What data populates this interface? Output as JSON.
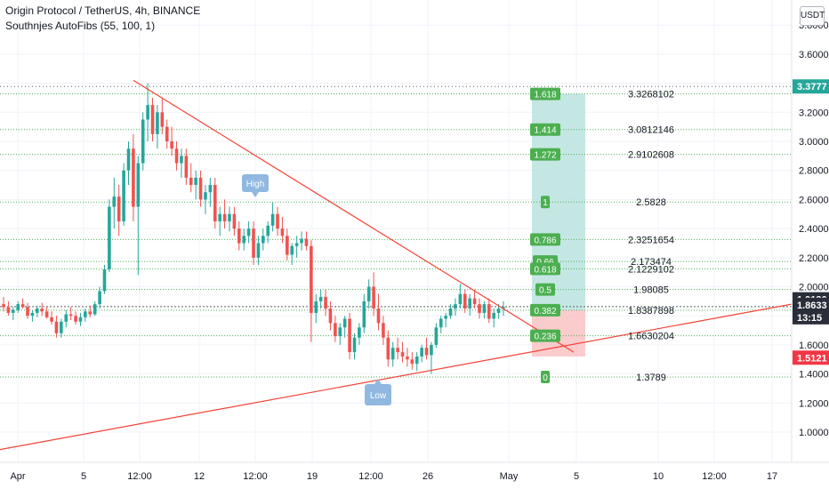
{
  "header": {
    "title": "Origin Protocol / TetherUS, 4h, BINANCE",
    "indicator": "Southnjes AutoFibs (55, 100, 1)"
  },
  "currency": "USDT",
  "colors": {
    "up": "#26a69a",
    "down": "#ef5350",
    "trend": "#f44336",
    "fib_line": "#4caf50",
    "fib_badge": "#4caf50",
    "zone_green": "#b2dfdb",
    "zone_red": "#f8bbbb",
    "marker": "#90b8e0",
    "price_blue": "#5d606b",
    "price_red": "#f23645",
    "price_dark": "#131722",
    "last_price_bg": "#2a2e39"
  },
  "price_axis": {
    "ticks": [
      "3.8000",
      "3.6000",
      "3.4000",
      "3.2000",
      "3.0000",
      "2.8000",
      "2.6000",
      "2.4000",
      "2.2000",
      "2.0000",
      "1.8000",
      "1.6000",
      "1.4000",
      "1.2000",
      "1.0000"
    ],
    "labels": [
      {
        "text": "3.3777",
        "style": "green"
      },
      {
        "text": "1.9136",
        "style": "dark"
      },
      {
        "text": "1.8633",
        "style": "blue"
      },
      {
        "text": "13:15",
        "style": "blue"
      },
      {
        "text": "1.5121",
        "style": "red"
      }
    ]
  },
  "time_axis": {
    "ticks": [
      "Apr",
      "5",
      "12:00",
      "12",
      "12:00",
      "19",
      "12:00",
      "26",
      "May",
      "5",
      "10",
      "12:00",
      "17"
    ]
  },
  "chart_data": {
    "type": "candlestick",
    "symbol": "OGN/USDT",
    "timeframe": "4h",
    "ylim": [
      0.9,
      3.85
    ],
    "fib_levels": [
      {
        "ratio": "1.618",
        "value": "3.3268102"
      },
      {
        "ratio": "1.414",
        "value": "3.0812146"
      },
      {
        "ratio": "1.272",
        "value": "2.9102608"
      },
      {
        "ratio": "1",
        "value": "2.5828"
      },
      {
        "ratio": "0.786",
        "value": "2.3251654"
      },
      {
        "ratio": "0.66",
        "value": "2.173474"
      },
      {
        "ratio": "0.618",
        "value": "2.1229102"
      },
      {
        "ratio": "0.5",
        "value": "1.98085"
      },
      {
        "ratio": "0.382",
        "value": "1.8387898"
      },
      {
        "ratio": "0.236",
        "value": "1.6630204"
      },
      {
        "ratio": "0",
        "value": "1.3789"
      }
    ],
    "markers": [
      {
        "label": "High"
      },
      {
        "label": "Low"
      }
    ],
    "candles": [
      [
        1.88,
        1.93,
        1.83,
        1.86
      ],
      [
        1.86,
        1.9,
        1.8,
        1.82
      ],
      [
        1.82,
        1.86,
        1.77,
        1.84
      ],
      [
        1.84,
        1.9,
        1.82,
        1.88
      ],
      [
        1.88,
        1.92,
        1.85,
        1.86
      ],
      [
        1.86,
        1.89,
        1.78,
        1.8
      ],
      [
        1.8,
        1.84,
        1.76,
        1.82
      ],
      [
        1.82,
        1.87,
        1.79,
        1.85
      ],
      [
        1.85,
        1.89,
        1.8,
        1.83
      ],
      [
        1.83,
        1.86,
        1.78,
        1.79
      ],
      [
        1.79,
        1.83,
        1.74,
        1.76
      ],
      [
        1.76,
        1.8,
        1.65,
        1.68
      ],
      [
        1.68,
        1.78,
        1.65,
        1.76
      ],
      [
        1.76,
        1.84,
        1.72,
        1.81
      ],
      [
        1.81,
        1.86,
        1.77,
        1.8
      ],
      [
        1.8,
        1.83,
        1.74,
        1.76
      ],
      [
        1.76,
        1.82,
        1.73,
        1.79
      ],
      [
        1.79,
        1.85,
        1.76,
        1.83
      ],
      [
        1.83,
        1.87,
        1.79,
        1.81
      ],
      [
        1.81,
        1.9,
        1.8,
        1.88
      ],
      [
        1.88,
        2.0,
        1.85,
        1.97
      ],
      [
        1.97,
        2.15,
        1.95,
        2.12
      ],
      [
        2.12,
        2.6,
        2.1,
        2.55
      ],
      [
        2.55,
        2.75,
        2.4,
        2.62
      ],
      [
        2.62,
        2.7,
        2.35,
        2.45
      ],
      [
        2.45,
        2.85,
        2.42,
        2.8
      ],
      [
        2.8,
        3.0,
        2.7,
        2.95
      ],
      [
        2.95,
        3.05,
        2.45,
        2.55
      ],
      [
        2.55,
        2.9,
        2.08,
        2.85
      ],
      [
        2.85,
        3.2,
        2.8,
        3.15
      ],
      [
        3.15,
        3.4,
        3.0,
        3.25
      ],
      [
        3.25,
        3.3,
        3.0,
        3.05
      ],
      [
        3.05,
        3.25,
        2.95,
        3.2
      ],
      [
        3.2,
        3.3,
        3.05,
        3.1
      ],
      [
        3.1,
        3.15,
        2.95,
        3.0
      ],
      [
        3.0,
        3.1,
        2.9,
        2.95
      ],
      [
        2.95,
        3.0,
        2.8,
        2.85
      ],
      [
        2.85,
        2.95,
        2.75,
        2.9
      ],
      [
        2.9,
        2.95,
        2.7,
        2.75
      ],
      [
        2.75,
        2.85,
        2.65,
        2.7
      ],
      [
        2.7,
        2.8,
        2.6,
        2.75
      ],
      [
        2.75,
        2.8,
        2.55,
        2.6
      ],
      [
        2.6,
        2.7,
        2.5,
        2.65
      ],
      [
        2.65,
        2.75,
        2.55,
        2.7
      ],
      [
        2.7,
        2.75,
        2.4,
        2.45
      ],
      [
        2.45,
        2.55,
        2.35,
        2.5
      ],
      [
        2.5,
        2.6,
        2.4,
        2.45
      ],
      [
        2.45,
        2.55,
        2.38,
        2.5
      ],
      [
        2.5,
        2.55,
        2.35,
        2.4
      ],
      [
        2.4,
        2.45,
        2.25,
        2.3
      ],
      [
        2.3,
        2.4,
        2.25,
        2.35
      ],
      [
        2.35,
        2.45,
        2.3,
        2.4
      ],
      [
        2.4,
        2.45,
        2.15,
        2.2
      ],
      [
        2.2,
        2.35,
        2.15,
        2.3
      ],
      [
        2.3,
        2.4,
        2.25,
        2.35
      ],
      [
        2.35,
        2.45,
        2.3,
        2.42
      ],
      [
        2.42,
        2.58,
        2.38,
        2.5
      ],
      [
        2.5,
        2.55,
        2.35,
        2.4
      ],
      [
        2.4,
        2.48,
        2.3,
        2.35
      ],
      [
        2.35,
        2.4,
        2.18,
        2.22
      ],
      [
        2.22,
        2.3,
        2.15,
        2.28
      ],
      [
        2.28,
        2.35,
        2.2,
        2.3
      ],
      [
        2.3,
        2.38,
        2.25,
        2.33
      ],
      [
        2.33,
        2.38,
        2.25,
        2.28
      ],
      [
        2.28,
        2.32,
        1.62,
        1.82
      ],
      [
        1.82,
        1.95,
        1.75,
        1.9
      ],
      [
        1.9,
        1.98,
        1.85,
        1.93
      ],
      [
        1.93,
        1.98,
        1.8,
        1.85
      ],
      [
        1.85,
        1.9,
        1.7,
        1.75
      ],
      [
        1.75,
        1.8,
        1.62,
        1.66
      ],
      [
        1.66,
        1.75,
        1.6,
        1.72
      ],
      [
        1.72,
        1.8,
        1.65,
        1.78
      ],
      [
        1.78,
        1.82,
        1.5,
        1.55
      ],
      [
        1.55,
        1.68,
        1.5,
        1.65
      ],
      [
        1.65,
        1.75,
        1.6,
        1.72
      ],
      [
        1.72,
        1.95,
        1.68,
        1.9
      ],
      [
        1.9,
        2.05,
        1.85,
        2.0
      ],
      [
        2.0,
        2.1,
        1.8,
        1.85
      ],
      [
        1.85,
        1.95,
        1.7,
        1.75
      ],
      [
        1.75,
        1.8,
        1.6,
        1.65
      ],
      [
        1.65,
        1.7,
        1.45,
        1.5
      ],
      [
        1.5,
        1.62,
        1.45,
        1.58
      ],
      [
        1.58,
        1.65,
        1.5,
        1.55
      ],
      [
        1.55,
        1.62,
        1.48,
        1.52
      ],
      [
        1.52,
        1.58,
        1.45,
        1.5
      ],
      [
        1.5,
        1.55,
        1.43,
        1.47
      ],
      [
        1.47,
        1.55,
        1.42,
        1.52
      ],
      [
        1.52,
        1.6,
        1.48,
        1.58
      ],
      [
        1.58,
        1.65,
        1.5,
        1.53
      ],
      [
        1.53,
        1.62,
        1.4,
        1.6
      ],
      [
        1.6,
        1.75,
        1.58,
        1.72
      ],
      [
        1.72,
        1.8,
        1.68,
        1.78
      ],
      [
        1.78,
        1.82,
        1.72,
        1.8
      ],
      [
        1.8,
        1.88,
        1.78,
        1.85
      ],
      [
        1.85,
        1.92,
        1.8,
        1.88
      ],
      [
        1.88,
        2.02,
        1.85,
        1.95
      ],
      [
        1.95,
        1.98,
        1.82,
        1.85
      ],
      [
        1.85,
        1.95,
        1.8,
        1.92
      ],
      [
        1.92,
        1.98,
        1.85,
        1.88
      ],
      [
        1.88,
        1.92,
        1.78,
        1.82
      ],
      [
        1.82,
        1.9,
        1.78,
        1.88
      ],
      [
        1.88,
        1.92,
        1.75,
        1.78
      ],
      [
        1.78,
        1.85,
        1.72,
        1.82
      ],
      [
        1.82,
        1.88,
        1.78,
        1.85
      ],
      [
        1.85,
        1.9,
        1.8,
        1.86
      ]
    ]
  }
}
